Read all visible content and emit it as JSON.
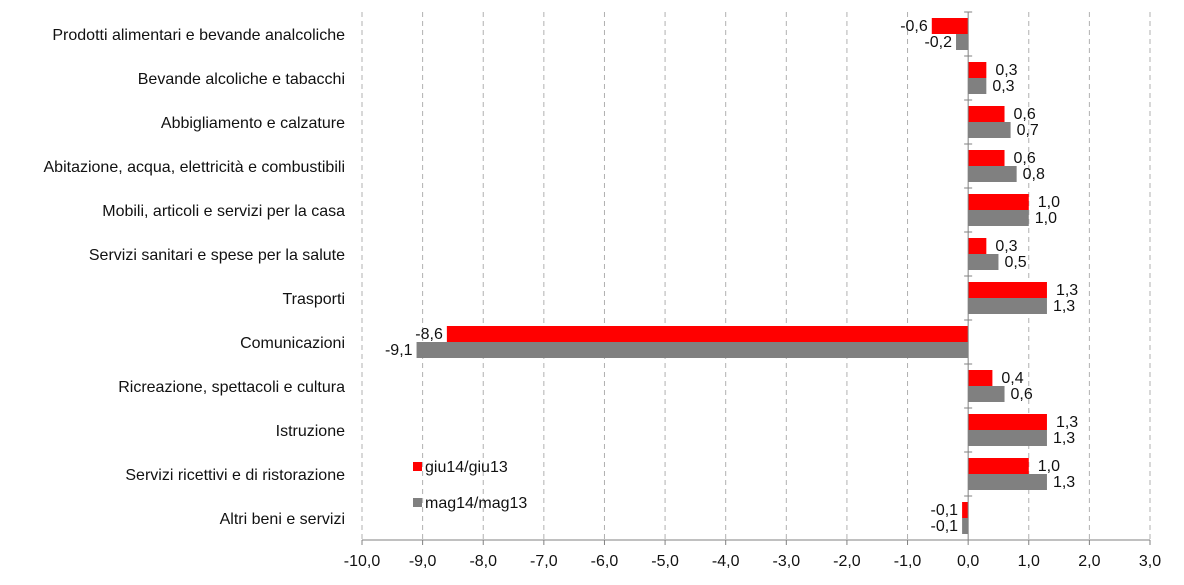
{
  "chart_data": {
    "type": "bar",
    "orientation": "horizontal",
    "categories": [
      "Prodotti alimentari e bevande analcoliche",
      "Bevande alcoliche e tabacchi",
      "Abbigliamento e calzature",
      "Abitazione, acqua, elettricità e combustibili",
      "Mobili, articoli e servizi per la casa",
      "Servizi sanitari e spese per la salute",
      "Trasporti",
      "Comunicazioni",
      "Ricreazione, spettacoli e cultura",
      "Istruzione",
      "Servizi ricettivi e di ristorazione",
      "Altri beni e servizi"
    ],
    "series": [
      {
        "name": "giu14/giu13",
        "color": "#ff0000",
        "values": [
          -0.6,
          0.3,
          0.6,
          0.6,
          1.0,
          0.3,
          1.3,
          -8.6,
          0.4,
          1.3,
          1.0,
          -0.1
        ],
        "labels": [
          "-0,6",
          "0,3",
          "0,6",
          "0,6",
          "1,0",
          "0,3",
          "1,3",
          "-8,6",
          "0,4",
          "1,3",
          "1,0",
          "-0,1"
        ]
      },
      {
        "name": "mag14/mag13",
        "color": "#808080",
        "values": [
          -0.2,
          0.3,
          0.7,
          0.8,
          1.0,
          0.5,
          1.3,
          -9.1,
          0.6,
          1.3,
          1.3,
          -0.1
        ],
        "labels": [
          "-0,2",
          "0,3",
          "0,7",
          "0,8",
          "1,0",
          "0,5",
          "1,3",
          "-9,1",
          "0,6",
          "1,3",
          "1,3",
          "-0,1"
        ]
      }
    ],
    "xlim": [
      -10.0,
      3.0
    ],
    "xticks": [
      -10,
      -9,
      -8,
      -7,
      -6,
      -5,
      -4,
      -3,
      -2,
      -1,
      0,
      1,
      2,
      3
    ],
    "xtick_labels": [
      "-10,0",
      "-9,0",
      "-8,0",
      "-7,0",
      "-6,0",
      "-5,0",
      "-4,0",
      "-3,0",
      "-2,0",
      "-1,0",
      "0,0",
      "1,0",
      "2,0",
      "3,0"
    ],
    "title": "",
    "xlabel": "",
    "ylabel": "",
    "grid": "vertical dashed",
    "legend_position": "lower-left"
  }
}
